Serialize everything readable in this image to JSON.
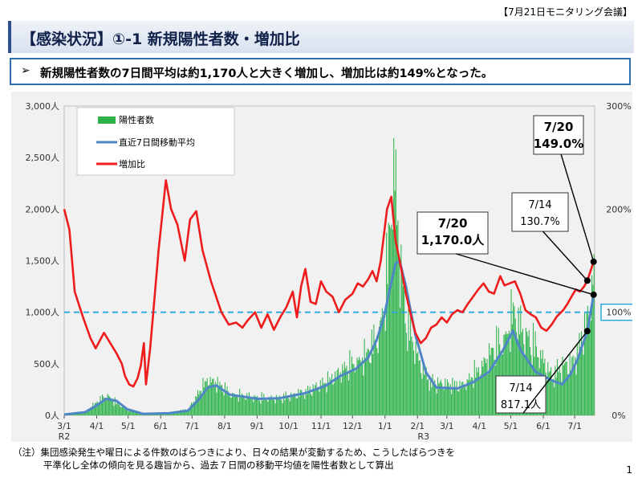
{
  "header": {
    "meeting_label": "【7月21日モニタリング会議】",
    "title": "【感染状況】①-1 新規陽性者数・増加比"
  },
  "summary": {
    "bullet": "➢",
    "text": "新規陽性者数の7日間平均は約1,170人と大きく増加し、増加比は約149%となった。"
  },
  "colors": {
    "bars": "#2db34a",
    "moving_avg": "#4f86c6",
    "ratio": "#ee1c1c",
    "ref_line": "#29a8e0",
    "panel_bg": "#f1f1f1"
  },
  "chart_data": {
    "type": "bar+line",
    "title": "",
    "x_start": "3/1",
    "x_tick_labels": [
      "3/1",
      "4/1",
      "5/1",
      "6/1",
      "7/1",
      "8/1",
      "9/1",
      "10/1",
      "11/1",
      "12/1",
      "1/1",
      "2/1",
      "3/1",
      "4/1",
      "5/1",
      "6/1",
      "7/1"
    ],
    "x_year_labels": [
      "R2",
      "R3"
    ],
    "left_axis": {
      "ylim": [
        0,
        3000
      ],
      "ticks": [
        "0人",
        "500人",
        "1,000人",
        "1,500人",
        "2,000人",
        "2,500人",
        "3,000人"
      ]
    },
    "right_axis": {
      "ylim": [
        0,
        300
      ],
      "ticks": [
        "0%",
        "100%",
        "200%",
        "300%"
      ]
    },
    "legend": [
      {
        "name": "陽性者数",
        "type": "bar"
      },
      {
        "name": "直近7日間移動平均",
        "type": "line"
      },
      {
        "name": "増加比",
        "type": "line"
      }
    ],
    "reference_line": {
      "axis": "right",
      "value": 100,
      "label": "100%"
    },
    "series": [
      {
        "name": "陽性者数",
        "type": "bar",
        "axis": "left",
        "knots": [
          [
            0,
            5
          ],
          [
            20,
            40
          ],
          [
            30,
            120
          ],
          [
            40,
            200
          ],
          [
            48,
            130
          ],
          [
            60,
            60
          ],
          [
            75,
            12
          ],
          [
            100,
            25
          ],
          [
            118,
            60
          ],
          [
            128,
            220
          ],
          [
            137,
            360
          ],
          [
            145,
            320
          ],
          [
            158,
            210
          ],
          [
            185,
            170
          ],
          [
            205,
            165
          ],
          [
            230,
            230
          ],
          [
            250,
            330
          ],
          [
            263,
            430
          ],
          [
            278,
            520
          ],
          [
            290,
            620
          ],
          [
            300,
            800
          ],
          [
            306,
            1200
          ],
          [
            309,
            1600
          ],
          [
            312,
            2100
          ],
          [
            314,
            2450
          ],
          [
            318,
            1800
          ],
          [
            325,
            1000
          ],
          [
            338,
            520
          ],
          [
            350,
            320
          ],
          [
            380,
            290
          ],
          [
            395,
            450
          ],
          [
            410,
            650
          ],
          [
            420,
            750
          ],
          [
            428,
            1000
          ],
          [
            435,
            850
          ],
          [
            450,
            650
          ],
          [
            465,
            380
          ],
          [
            475,
            480
          ],
          [
            485,
            520
          ],
          [
            490,
            640
          ],
          [
            495,
            800
          ],
          [
            499,
            950
          ],
          [
            502,
            1150
          ],
          [
            505,
            1380
          ]
        ]
      },
      {
        "name": "直近7日間移動平均",
        "type": "line",
        "axis": "left",
        "knots": [
          [
            0,
            8
          ],
          [
            20,
            30
          ],
          [
            30,
            90
          ],
          [
            40,
            160
          ],
          [
            50,
            140
          ],
          [
            60,
            60
          ],
          [
            75,
            15
          ],
          [
            100,
            20
          ],
          [
            118,
            45
          ],
          [
            128,
            150
          ],
          [
            137,
            270
          ],
          [
            145,
            290
          ],
          [
            158,
            200
          ],
          [
            185,
            160
          ],
          [
            205,
            165
          ],
          [
            230,
            215
          ],
          [
            250,
            290
          ],
          [
            263,
            380
          ],
          [
            278,
            450
          ],
          [
            290,
            560
          ],
          [
            298,
            730
          ],
          [
            305,
            950
          ],
          [
            310,
            1200
          ],
          [
            316,
            1470
          ],
          [
            320,
            1500
          ],
          [
            326,
            1250
          ],
          [
            335,
            780
          ],
          [
            345,
            420
          ],
          [
            355,
            270
          ],
          [
            375,
            260
          ],
          [
            390,
            320
          ],
          [
            405,
            420
          ],
          [
            418,
            620
          ],
          [
            428,
            820
          ],
          [
            436,
            620
          ],
          [
            450,
            420
          ],
          [
            465,
            340
          ],
          [
            475,
            300
          ],
          [
            483,
            400
          ],
          [
            490,
            550
          ],
          [
            493,
            640
          ],
          [
            499,
            817.1
          ],
          [
            505,
            1170.0
          ]
        ]
      },
      {
        "name": "増加比",
        "type": "line",
        "axis": "right",
        "knots": [
          [
            0,
            200
          ],
          [
            5,
            180
          ],
          [
            10,
            120
          ],
          [
            18,
            95
          ],
          [
            25,
            75
          ],
          [
            30,
            65
          ],
          [
            38,
            80
          ],
          [
            50,
            60
          ],
          [
            55,
            50
          ],
          [
            58,
            38
          ],
          [
            62,
            30
          ],
          [
            66,
            28
          ],
          [
            70,
            36
          ],
          [
            73,
            48
          ],
          [
            76,
            70
          ],
          [
            78,
            30
          ],
          [
            82,
            65
          ],
          [
            85,
            100
          ],
          [
            90,
            160
          ],
          [
            97,
            228
          ],
          [
            102,
            200
          ],
          [
            108,
            185
          ],
          [
            115,
            150
          ],
          [
            120,
            190
          ],
          [
            126,
            198
          ],
          [
            132,
            160
          ],
          [
            140,
            130
          ],
          [
            150,
            100
          ],
          [
            157,
            88
          ],
          [
            164,
            90
          ],
          [
            170,
            85
          ],
          [
            175,
            92
          ],
          [
            182,
            100
          ],
          [
            188,
            85
          ],
          [
            194,
            98
          ],
          [
            200,
            83
          ],
          [
            206,
            95
          ],
          [
            212,
            105
          ],
          [
            218,
            120
          ],
          [
            222,
            95
          ],
          [
            226,
            125
          ],
          [
            230,
            142
          ],
          [
            235,
            110
          ],
          [
            240,
            108
          ],
          [
            245,
            130
          ],
          [
            250,
            120
          ],
          [
            256,
            115
          ],
          [
            262,
            100
          ],
          [
            268,
            112
          ],
          [
            275,
            118
          ],
          [
            280,
            128
          ],
          [
            285,
            125
          ],
          [
            290,
            132
          ],
          [
            294,
            140
          ],
          [
            298,
            130
          ],
          [
            302,
            150
          ],
          [
            305,
            175
          ],
          [
            308,
            200
          ],
          [
            312,
            212
          ],
          [
            316,
            170
          ],
          [
            320,
            150
          ],
          [
            326,
            118
          ],
          [
            330,
            100
          ],
          [
            335,
            80
          ],
          [
            340,
            70
          ],
          [
            345,
            75
          ],
          [
            350,
            85
          ],
          [
            355,
            88
          ],
          [
            360,
            95
          ],
          [
            365,
            90
          ],
          [
            370,
            98
          ],
          [
            375,
            102
          ],
          [
            380,
            100
          ],
          [
            385,
            108
          ],
          [
            390,
            115
          ],
          [
            395,
            122
          ],
          [
            400,
            128
          ],
          [
            405,
            120
          ],
          [
            410,
            118
          ],
          [
            416,
            135
          ],
          [
            420,
            126
          ],
          [
            425,
            128
          ],
          [
            430,
            130
          ],
          [
            435,
            118
          ],
          [
            440,
            102
          ],
          [
            445,
            98
          ],
          [
            450,
            95
          ],
          [
            455,
            85
          ],
          [
            460,
            82
          ],
          [
            465,
            88
          ],
          [
            470,
            96
          ],
          [
            476,
            102
          ],
          [
            480,
            108
          ],
          [
            485,
            117
          ],
          [
            488,
            122
          ],
          [
            492,
            120
          ],
          [
            496,
            125
          ],
          [
            499,
            130.7
          ],
          [
            505,
            149.0
          ]
        ]
      }
    ],
    "annotations": [
      {
        "target": "増加比",
        "date": "7/20",
        "value_label": "149.0%"
      },
      {
        "target": "増加比",
        "date": "7/14",
        "value_label": "130.7%"
      },
      {
        "target": "直近7日間移動平均",
        "date": "7/20",
        "value_label": "1,170.0人"
      },
      {
        "target": "直近7日間移動平均",
        "date": "7/14",
        "value_label": "817.1人"
      }
    ]
  },
  "footnote": {
    "line1": "（注）集団感染発生や曜日による件数のばらつきにより、日々の結果が変動するため、こうしたばらつきを",
    "line2": "平準化し全体の傾向を見る趣旨から、過去７日間の移動平均値を陽性者数として算出"
  },
  "page_number": "1"
}
